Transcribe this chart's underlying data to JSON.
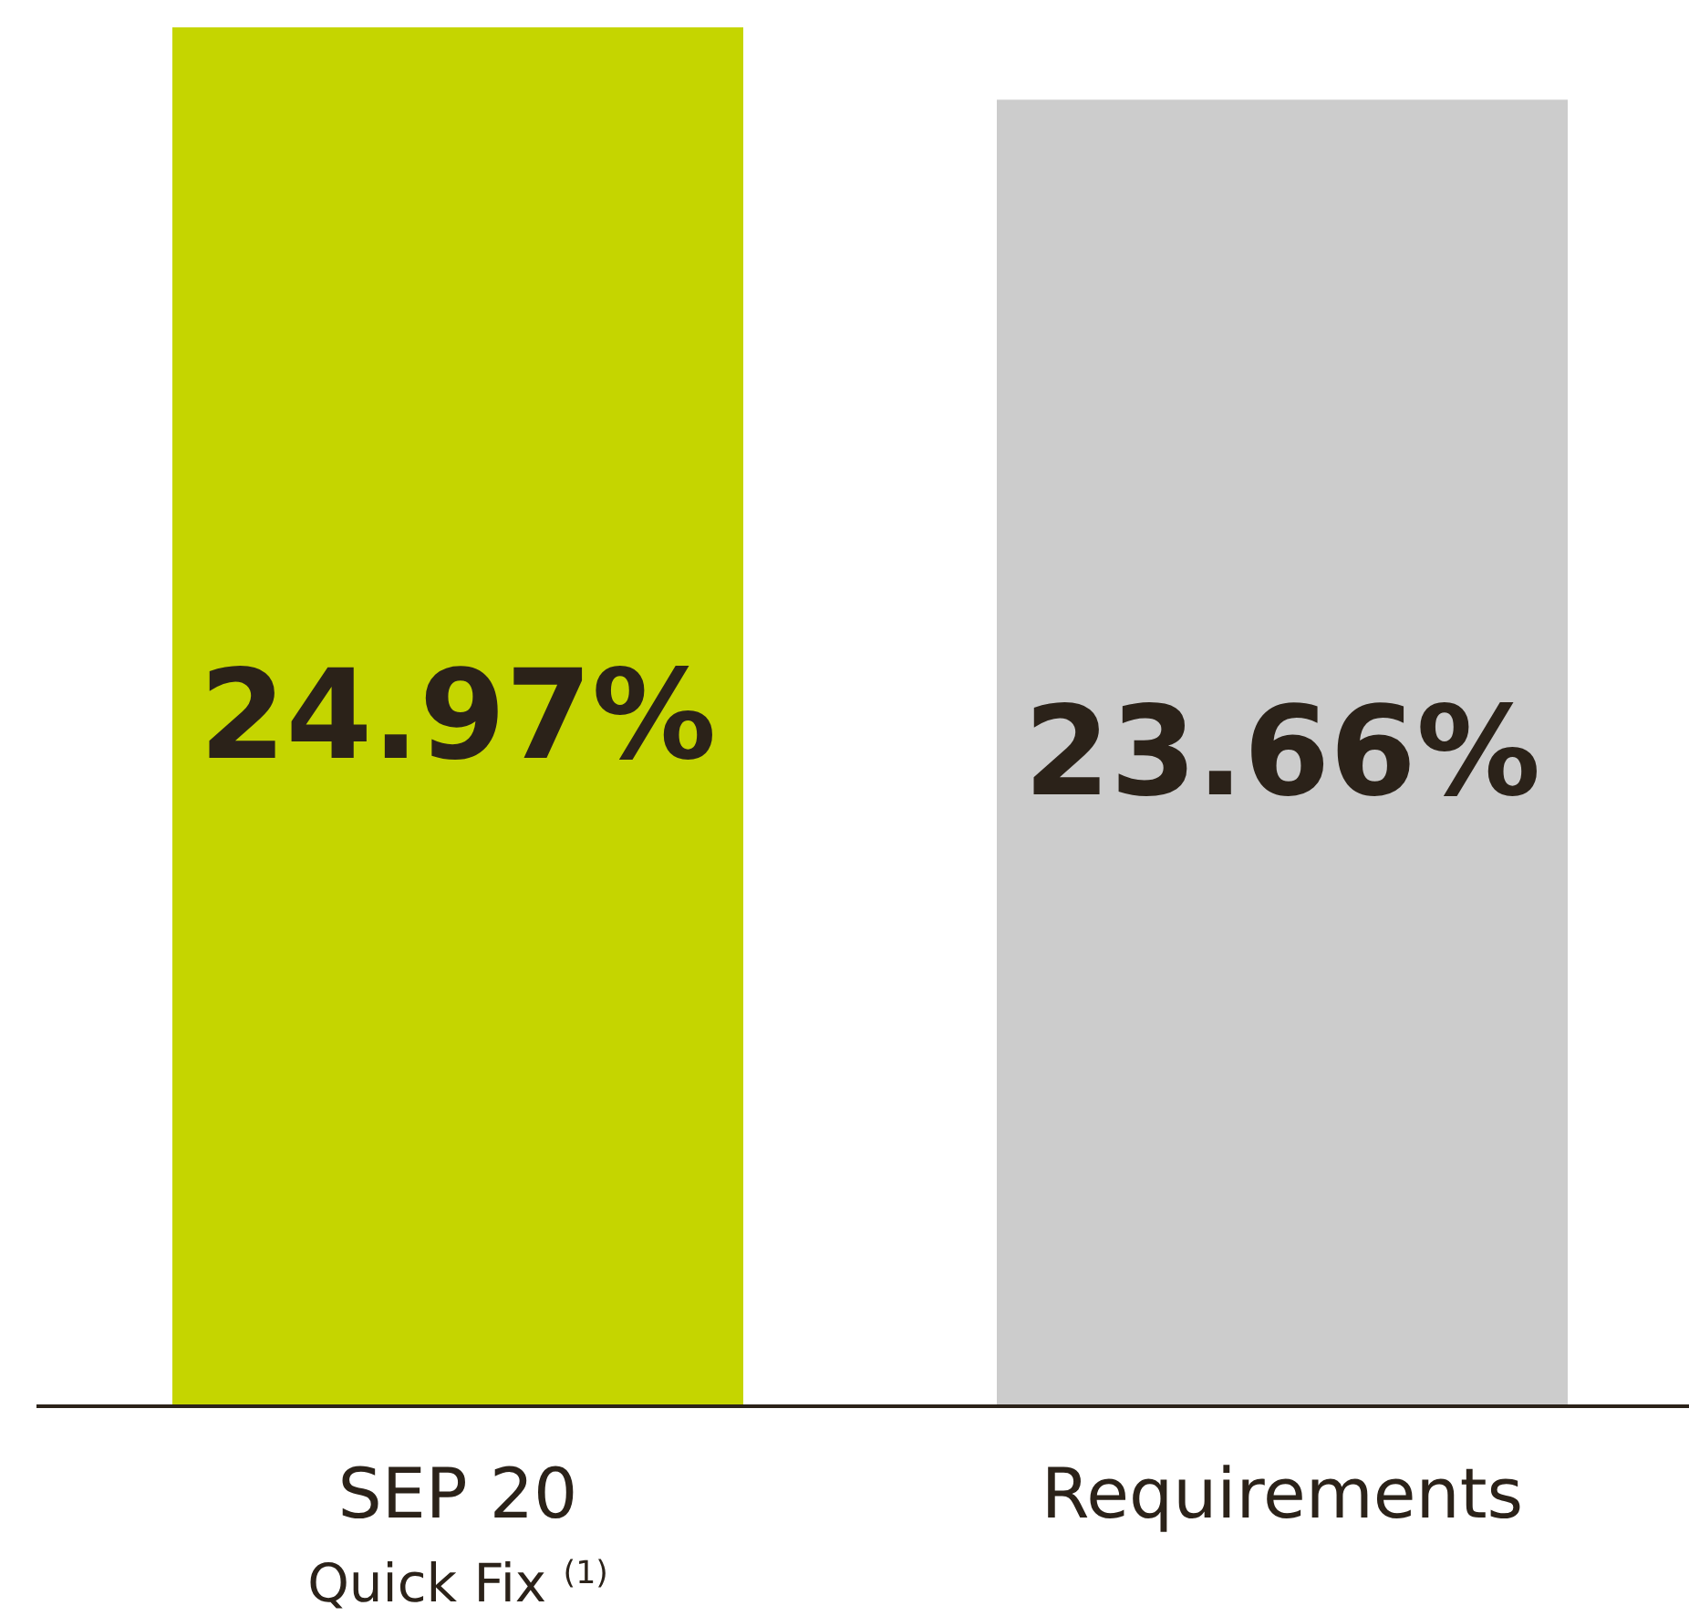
{
  "chart_data": {
    "type": "bar",
    "categories": [
      "SEP 20\nQuick Fix $^{(1)}$",
      "Requirements"
    ],
    "values": [
      24.97,
      23.66
    ],
    "colors": [
      "#c5d500",
      "#cccccc"
    ],
    "value_labels": [
      "24.97%",
      "23.66%"
    ]
  }
}
